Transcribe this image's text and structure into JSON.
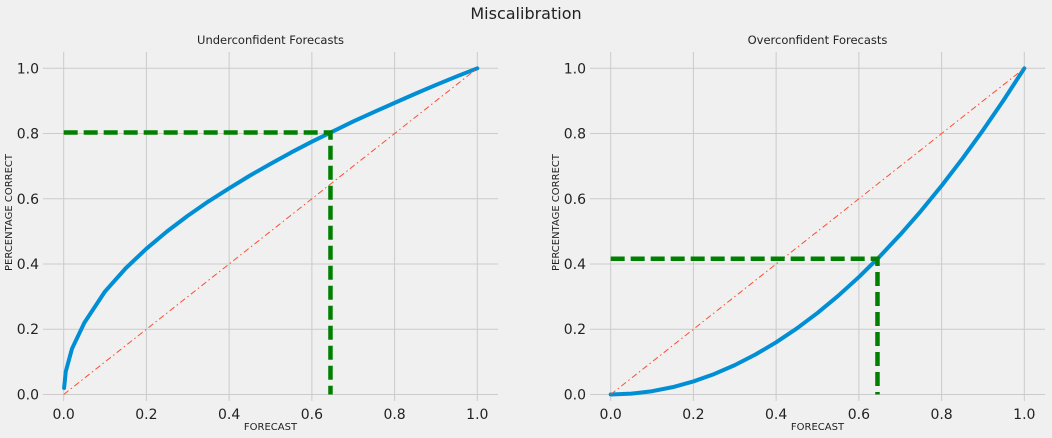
{
  "figure": {
    "title": "Miscalibration"
  },
  "colors": {
    "background": "#f0f0f0",
    "grid": "#cbcbcb",
    "curve": "#008fd5",
    "diagonal": "#fc4f30",
    "marker": "#007f00"
  },
  "chart_data": [
    {
      "type": "line",
      "title": "Underconfident Forecasts",
      "xlabel": "FORECAST",
      "ylabel": "PERCENTAGE CORRECT",
      "xlim": [
        -0.05,
        1.05
      ],
      "ylim": [
        -0.02,
        1.05
      ],
      "xticks": [
        "0.0",
        "0.2",
        "0.4",
        "0.6",
        "0.8",
        "1.0"
      ],
      "yticks": [
        "0.0",
        "0.2",
        "0.4",
        "0.6",
        "0.8",
        "1.0"
      ],
      "grid": true,
      "series": [
        {
          "style": "solid-curve",
          "x": [
            0.001,
            0.005,
            0.02,
            0.05,
            0.1,
            0.15,
            0.2,
            0.25,
            0.3,
            0.35,
            0.4,
            0.45,
            0.5,
            0.55,
            0.6,
            0.65,
            0.7,
            0.75,
            0.8,
            0.85,
            0.9,
            0.95,
            1.0
          ],
          "y": [
            0.02,
            0.07,
            0.14,
            0.22,
            0.316,
            0.387,
            0.447,
            0.5,
            0.548,
            0.592,
            0.632,
            0.671,
            0.707,
            0.742,
            0.775,
            0.806,
            0.837,
            0.866,
            0.894,
            0.922,
            0.949,
            0.975,
            1.0
          ]
        },
        {
          "style": "dash-dot-diagonal",
          "x": [
            0,
            1
          ],
          "y": [
            0,
            1
          ]
        },
        {
          "style": "dashed-marker",
          "x": [
            0.0,
            0.645,
            0.645
          ],
          "y": [
            0.803,
            0.803,
            0.0
          ]
        }
      ]
    },
    {
      "type": "line",
      "title": "Overconfident Forecasts",
      "xlabel": "FORECAST",
      "ylabel": "PERCENTAGE CORRECT",
      "xlim": [
        -0.05,
        1.05
      ],
      "ylim": [
        -0.02,
        1.05
      ],
      "xticks": [
        "0.0",
        "0.2",
        "0.4",
        "0.6",
        "0.8",
        "1.0"
      ],
      "yticks": [
        "0.0",
        "0.2",
        "0.4",
        "0.6",
        "0.8",
        "1.0"
      ],
      "grid": true,
      "series": [
        {
          "style": "solid-curve",
          "x": [
            0,
            0.05,
            0.1,
            0.15,
            0.2,
            0.25,
            0.3,
            0.35,
            0.4,
            0.45,
            0.5,
            0.55,
            0.6,
            0.65,
            0.7,
            0.75,
            0.8,
            0.85,
            0.9,
            0.95,
            1.0
          ],
          "y": [
            0,
            0.0025,
            0.01,
            0.0225,
            0.04,
            0.0625,
            0.09,
            0.1225,
            0.16,
            0.2025,
            0.25,
            0.3025,
            0.36,
            0.4225,
            0.49,
            0.5625,
            0.64,
            0.7225,
            0.81,
            0.9025,
            1.0
          ]
        },
        {
          "style": "dash-dot-diagonal",
          "x": [
            0,
            1
          ],
          "y": [
            0,
            1
          ]
        },
        {
          "style": "dashed-marker",
          "x": [
            0.0,
            0.645,
            0.645
          ],
          "y": [
            0.416,
            0.416,
            0.0
          ]
        }
      ]
    }
  ]
}
